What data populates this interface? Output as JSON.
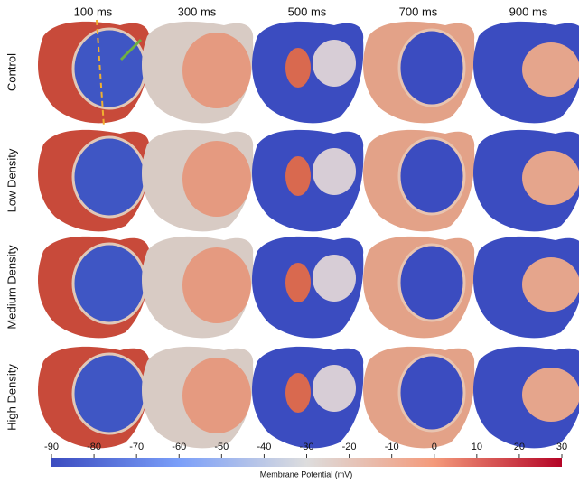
{
  "columns": [
    "100 ms",
    "300 ms",
    "500 ms",
    "700 ms",
    "900 ms"
  ],
  "rows": [
    "Control",
    "Low Density",
    "Medium Density",
    "High Density"
  ],
  "colorbar": {
    "label": "Membrane Potential (mV)",
    "lim": [
      -90,
      30
    ],
    "ticks": [
      -90,
      -80,
      -70,
      -60,
      -50,
      -40,
      -30,
      -20,
      -10,
      0,
      10,
      20,
      30
    ]
  }
}
